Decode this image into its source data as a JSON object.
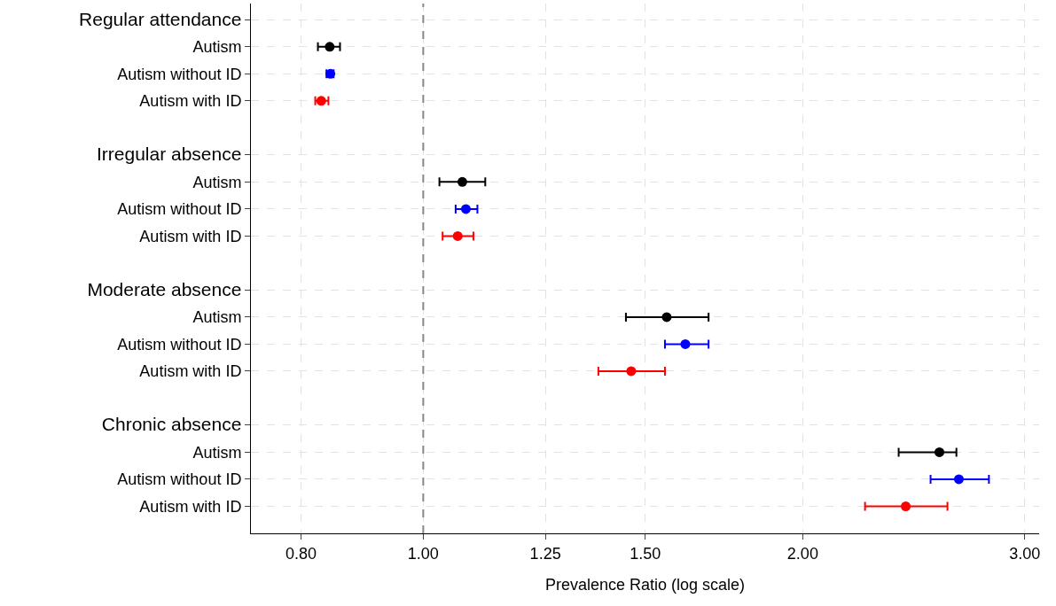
{
  "chart_data": {
    "type": "scatter",
    "orientation": "horizontal",
    "xlabel": "Prevalence Ratio (log scale)",
    "log": "x",
    "categories": [
      "Regular attendance",
      "Autism",
      "Autism without ID",
      "Autism with ID",
      "Irregular absence",
      "Autism",
      "Autism without ID",
      "Autism with ID",
      "Moderate absence",
      "Autism",
      "Autism without ID",
      "Autism with ID",
      "Chronic absence",
      "Autism",
      "Autism without ID",
      "Autism with ID"
    ],
    "series": [
      {
        "color": "#000000",
        "values": [
          null,
          0.843,
          null,
          null,
          null,
          1.074,
          null,
          null,
          null,
          1.56,
          null,
          null,
          null,
          2.567,
          null,
          null
        ],
        "errors": [
          null,
          [
            0.825,
            0.859
          ],
          null,
          null,
          null,
          [
            1.03,
            1.12
          ],
          null,
          null,
          null,
          [
            1.448,
            1.684
          ],
          null,
          null,
          null,
          [
            2.383,
            2.648
          ],
          null,
          null
        ]
      },
      {
        "color": "#0000ff",
        "values": [
          null,
          null,
          0.844,
          null,
          null,
          null,
          1.081,
          null,
          null,
          null,
          1.614,
          null,
          null,
          null,
          2.66,
          null
        ],
        "errors": [
          null,
          null,
          [
            0.838,
            0.849
          ],
          null,
          null,
          null,
          [
            1.061,
            1.104
          ],
          null,
          null,
          null,
          [
            1.555,
            1.684
          ],
          null,
          null,
          null,
          [
            2.526,
            2.81
          ],
          null
        ]
      },
      {
        "color": "#ff0000",
        "values": [
          null,
          null,
          null,
          0.83,
          null,
          null,
          null,
          1.065,
          null,
          null,
          null,
          1.462,
          null,
          null,
          null,
          2.414
        ],
        "errors": [
          null,
          null,
          null,
          [
            0.821,
            0.841
          ],
          null,
          null,
          null,
          [
            1.036,
            1.096
          ],
          null,
          null,
          null,
          [
            1.377,
            1.555
          ],
          null,
          null,
          null,
          [
            2.241,
            2.605
          ]
        ]
      }
    ],
    "xlim": [
      0.73,
      3.08
    ],
    "xticks": [
      {
        "value": 0.8,
        "label": "0.80"
      },
      {
        "value": 1,
        "label": "1.00"
      },
      {
        "value": 1.25,
        "label": "1.25"
      },
      {
        "value": 1.5,
        "label": "1.50"
      },
      {
        "value": 2,
        "label": "2.00"
      },
      {
        "value": 3,
        "label": "3.00"
      }
    ],
    "ref_lines": [
      {
        "axis": "x",
        "value": 1,
        "color": "#888888",
        "line_style": "dashed"
      }
    ],
    "grid": true,
    "marker": "circle"
  }
}
